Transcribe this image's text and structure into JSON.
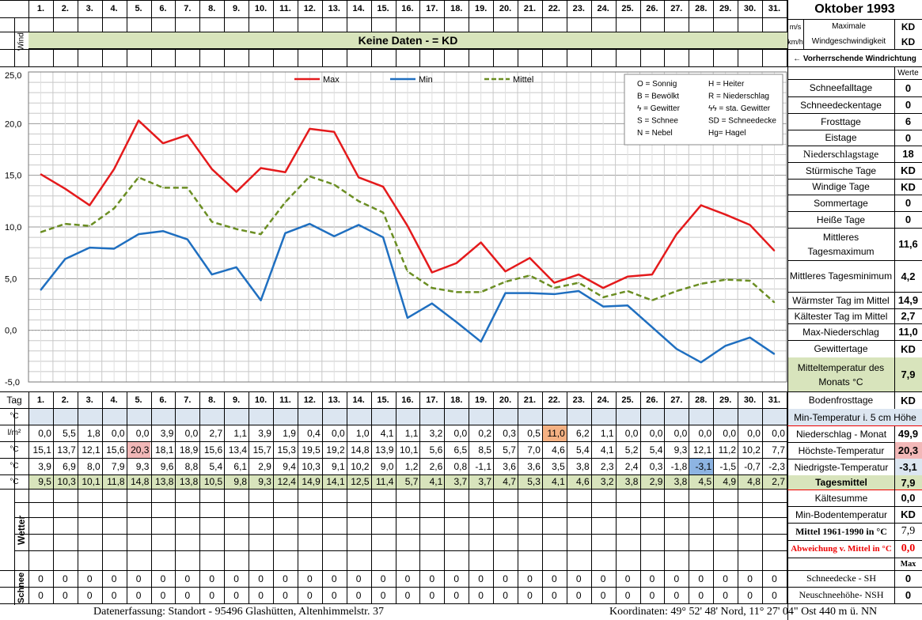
{
  "title": "Oktober 1993",
  "wind": {
    "side_label": "Wind",
    "unit_ms": "m/s",
    "unit_kmh": "km/h",
    "max_label_1": "Maximale",
    "max_label_2": "Windgeschwindigkeit",
    "max_value_ms": "KD",
    "max_value_kmh": "KD",
    "no_data": "Keine Daten -  = KD",
    "direction_label": "← Vorherrschende Windrichtung"
  },
  "werte_label": "Werte",
  "days": [
    "1.",
    "2.",
    "3.",
    "4.",
    "5.",
    "6.",
    "7.",
    "8.",
    "9.",
    "10.",
    "11.",
    "12.",
    "13.",
    "14.",
    "15.",
    "16.",
    "17.",
    "18.",
    "19.",
    "20.",
    "21.",
    "22.",
    "23.",
    "24.",
    "25.",
    "26.",
    "27.",
    "28.",
    "29.",
    "30.",
    "31."
  ],
  "tag_label": "Tag",
  "chart_data": {
    "type": "line",
    "x": [
      1,
      2,
      3,
      4,
      5,
      6,
      7,
      8,
      9,
      10,
      11,
      12,
      13,
      14,
      15,
      16,
      17,
      18,
      19,
      20,
      21,
      22,
      23,
      24,
      25,
      26,
      27,
      28,
      29,
      30,
      31
    ],
    "series": [
      {
        "name": "Max",
        "color": "#e41a1c",
        "values": [
          15.1,
          13.7,
          12.1,
          15.6,
          20.3,
          18.1,
          18.9,
          15.6,
          13.4,
          15.7,
          15.3,
          19.5,
          19.2,
          14.8,
          13.9,
          10.1,
          5.6,
          6.5,
          8.5,
          5.7,
          7.0,
          4.6,
          5.4,
          4.1,
          5.2,
          5.4,
          9.3,
          12.1,
          11.2,
          10.2,
          7.7
        ]
      },
      {
        "name": "Min",
        "color": "#1f6fc0",
        "values": [
          3.9,
          6.9,
          8.0,
          7.9,
          9.3,
          9.6,
          8.8,
          5.4,
          6.1,
          2.9,
          9.4,
          10.3,
          9.1,
          10.2,
          9.0,
          1.2,
          2.6,
          0.8,
          -1.1,
          3.6,
          3.6,
          3.5,
          3.8,
          2.3,
          2.4,
          0.3,
          -1.8,
          -3.1,
          -1.5,
          -0.7,
          -2.3
        ]
      },
      {
        "name": "Mittel",
        "color": "#6b8e23",
        "dashed": true,
        "values": [
          9.5,
          10.3,
          10.1,
          11.8,
          14.8,
          13.8,
          13.8,
          10.5,
          9.8,
          9.3,
          12.4,
          14.9,
          14.1,
          12.5,
          11.4,
          5.7,
          4.1,
          3.7,
          3.7,
          4.7,
          5.3,
          4.1,
          4.6,
          3.2,
          3.8,
          2.9,
          3.8,
          4.5,
          4.9,
          4.8,
          2.7
        ]
      }
    ],
    "ylim": [
      -5,
      25
    ],
    "yticks": [
      "25,0",
      "20,0",
      "15,0",
      "10,0",
      "5,0",
      "0,0",
      "-5,0"
    ],
    "grid": true,
    "legend_position": "top"
  },
  "legend_box": [
    [
      "O = Sonnig",
      "H = Heiter"
    ],
    [
      "B = Bewölkt",
      "R = Niederschlag"
    ],
    [
      "ϟ = Gewitter",
      "ϟϟ = sta. Gewitter"
    ],
    [
      "S = Schnee",
      "SD = Schneedecke"
    ],
    [
      "N = Nebel",
      "Hg= Hagel"
    ]
  ],
  "stats": [
    {
      "label": "Schneefalltage",
      "value": "0"
    },
    {
      "label": "Schneedeckentage",
      "value": "0"
    },
    {
      "label": "Frosttage",
      "value": "6"
    },
    {
      "label": "Eistage",
      "value": "0"
    },
    {
      "label": "Niederschlagstage",
      "value": "18"
    },
    {
      "label": "Stürmische Tage",
      "value": "KD"
    },
    {
      "label": "Windige Tage",
      "value": "KD"
    },
    {
      "label": "Sommertage",
      "value": "0"
    },
    {
      "label": "Heiße Tage",
      "value": "0"
    },
    {
      "label": "Mittleres Tagesmaximum",
      "value": "11,6"
    },
    {
      "label": "Mittleres Tagesminimum",
      "value": "4,2"
    },
    {
      "label": "Wärmster Tag im Mittel",
      "value": "14,9"
    },
    {
      "label": "Kältester Tag im Mittel",
      "value": "2,7"
    },
    {
      "label": "Max-Niederschlag",
      "value": "11,0"
    },
    {
      "label": "Gewittertage",
      "value": "KD"
    },
    {
      "label": "Mitteltemperatur des Monats °C",
      "value": "7,9"
    },
    {
      "label": "Bodenfrosttage",
      "value": "KD"
    }
  ],
  "table": {
    "min5cm": {
      "unit": "°C",
      "label": "Min-Temperatur i. 5 cm Höhe",
      "value": ""
    },
    "precip": {
      "unit": "l/m²",
      "label": "Niederschlag - Monat",
      "value": "49,9",
      "values": [
        "0,0",
        "5,5",
        "1,8",
        "0,0",
        "0,0",
        "3,9",
        "0,0",
        "2,7",
        "1,1",
        "3,9",
        "1,9",
        "0,4",
        "0,0",
        "1,0",
        "4,1",
        "1,1",
        "3,2",
        "0,0",
        "0,2",
        "0,3",
        "0,5",
        "11,0",
        "6,2",
        "1,1",
        "0,0",
        "0,0",
        "0,0",
        "0,0",
        "0,0",
        "0,0",
        "0,0"
      ]
    },
    "tmax": {
      "unit": "°C",
      "label": "Höchste-Temperatur",
      "value": "20,3",
      "values": [
        "15,1",
        "13,7",
        "12,1",
        "15,6",
        "20,3",
        "18,1",
        "18,9",
        "15,6",
        "13,4",
        "15,7",
        "15,3",
        "19,5",
        "19,2",
        "14,8",
        "13,9",
        "10,1",
        "5,6",
        "6,5",
        "8,5",
        "5,7",
        "7,0",
        "4,6",
        "5,4",
        "4,1",
        "5,2",
        "5,4",
        "9,3",
        "12,1",
        "11,2",
        "10,2",
        "7,7"
      ]
    },
    "tmin": {
      "unit": "°C",
      "label": "Niedrigste-Temperatur",
      "value": "-3,1",
      "values": [
        "3,9",
        "6,9",
        "8,0",
        "7,9",
        "9,3",
        "9,6",
        "8,8",
        "5,4",
        "6,1",
        "2,9",
        "9,4",
        "10,3",
        "9,1",
        "10,2",
        "9,0",
        "1,2",
        "2,6",
        "0,8",
        "-1,1",
        "3,6",
        "3,6",
        "3,5",
        "3,8",
        "2,3",
        "2,4",
        "0,3",
        "-1,8",
        "-3,1",
        "-1,5",
        "-0,7",
        "-2,3"
      ]
    },
    "tmean": {
      "unit": "°C",
      "label": "Tagesmittel",
      "value": "7,9",
      "values": [
        "9,5",
        "10,3",
        "10,1",
        "11,8",
        "14,8",
        "13,8",
        "13,8",
        "10,5",
        "9,8",
        "9,3",
        "12,4",
        "14,9",
        "14,1",
        "12,5",
        "11,4",
        "5,7",
        "4,1",
        "3,7",
        "3,7",
        "4,7",
        "5,3",
        "4,1",
        "4,6",
        "3,2",
        "3,8",
        "2,9",
        "3,8",
        "4,5",
        "4,9",
        "4,8",
        "2,7"
      ]
    }
  },
  "lower_stats": [
    {
      "label": "Kältesumme",
      "value": "0,0"
    },
    {
      "label": "Min-Bodentemperatur",
      "value": "KD"
    },
    {
      "label": "Mittel 1961-1990 in °C",
      "value": "7,9"
    },
    {
      "label": "Abweichung v. Mittel in °C",
      "value": "0,0"
    }
  ],
  "wetter_label": "Wetter",
  "schnee_label": "Schnee",
  "max_label": "Max",
  "snow": [
    {
      "label": "Schneedecke -   SH",
      "value": "0",
      "values": [
        "0",
        "0",
        "0",
        "0",
        "0",
        "0",
        "0",
        "0",
        "0",
        "0",
        "0",
        "0",
        "0",
        "0",
        "0",
        "0",
        "0",
        "0",
        "0",
        "0",
        "0",
        "0",
        "0",
        "0",
        "0",
        "0",
        "0",
        "0",
        "0",
        "0",
        "0"
      ]
    },
    {
      "label": "Neuschneehöhe- NSH",
      "value": "0",
      "values": [
        "0",
        "0",
        "0",
        "0",
        "0",
        "0",
        "0",
        "0",
        "0",
        "0",
        "0",
        "0",
        "0",
        "0",
        "0",
        "0",
        "0",
        "0",
        "0",
        "0",
        "0",
        "0",
        "0",
        "0",
        "0",
        "0",
        "0",
        "0",
        "0",
        "0",
        "0"
      ]
    }
  ],
  "footer": {
    "left": "Datenerfassung:  Standort -  95496  Glashütten, Altenhimmelstr. 37",
    "right": "Koordinaten:  49° 52' 48' Nord,  11° 27' 04\" Ost   440 m ü. NN"
  },
  "colors": {
    "green_band": "#d8e4bc",
    "blue_band": "#dce6f1",
    "max_highlight": "#f4b183",
    "min_highlight": "#8db4e2",
    "red_highlight": "#f2b8b8"
  }
}
